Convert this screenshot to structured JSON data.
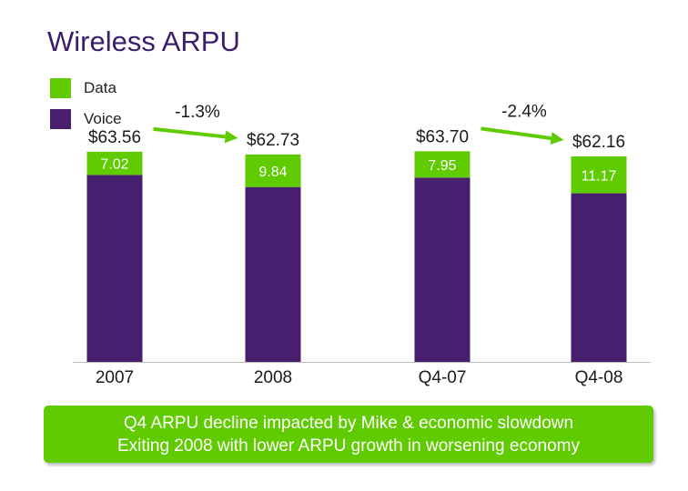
{
  "chart_data": {
    "type": "bar",
    "title": "Wireless ARPU",
    "categories": [
      "2007",
      "2008",
      "Q4-07",
      "Q4-08"
    ],
    "series": [
      {
        "name": "Voice",
        "color": "#471f6e",
        "values": [
          56.54,
          52.89,
          55.75,
          50.99
        ]
      },
      {
        "name": "Data",
        "color": "#5fcb00",
        "values": [
          7.02,
          9.84,
          7.95,
          11.17
        ]
      }
    ],
    "data_labels": [
      "7.02",
      "9.84",
      "7.95",
      "11.17"
    ],
    "totals": [
      "$63.56",
      "$62.73",
      "$63.70",
      "$62.16"
    ],
    "changes": [
      {
        "label": "-1.3%",
        "from": 0,
        "to": 1
      },
      {
        "label": "-2.4%",
        "from": 2,
        "to": 3
      }
    ],
    "legend": [
      {
        "name": "Data",
        "color": "#5fcb00"
      },
      {
        "name": "Voice",
        "color": "#471f6e"
      }
    ],
    "xlabel": "",
    "ylabel": "",
    "ylim": [
      0,
      66
    ]
  },
  "callout": {
    "line1": "Q4 ARPU decline impacted by Mike & economic slowdown",
    "line2": "Exiting 2008 with lower ARPU growth in worsening economy"
  }
}
